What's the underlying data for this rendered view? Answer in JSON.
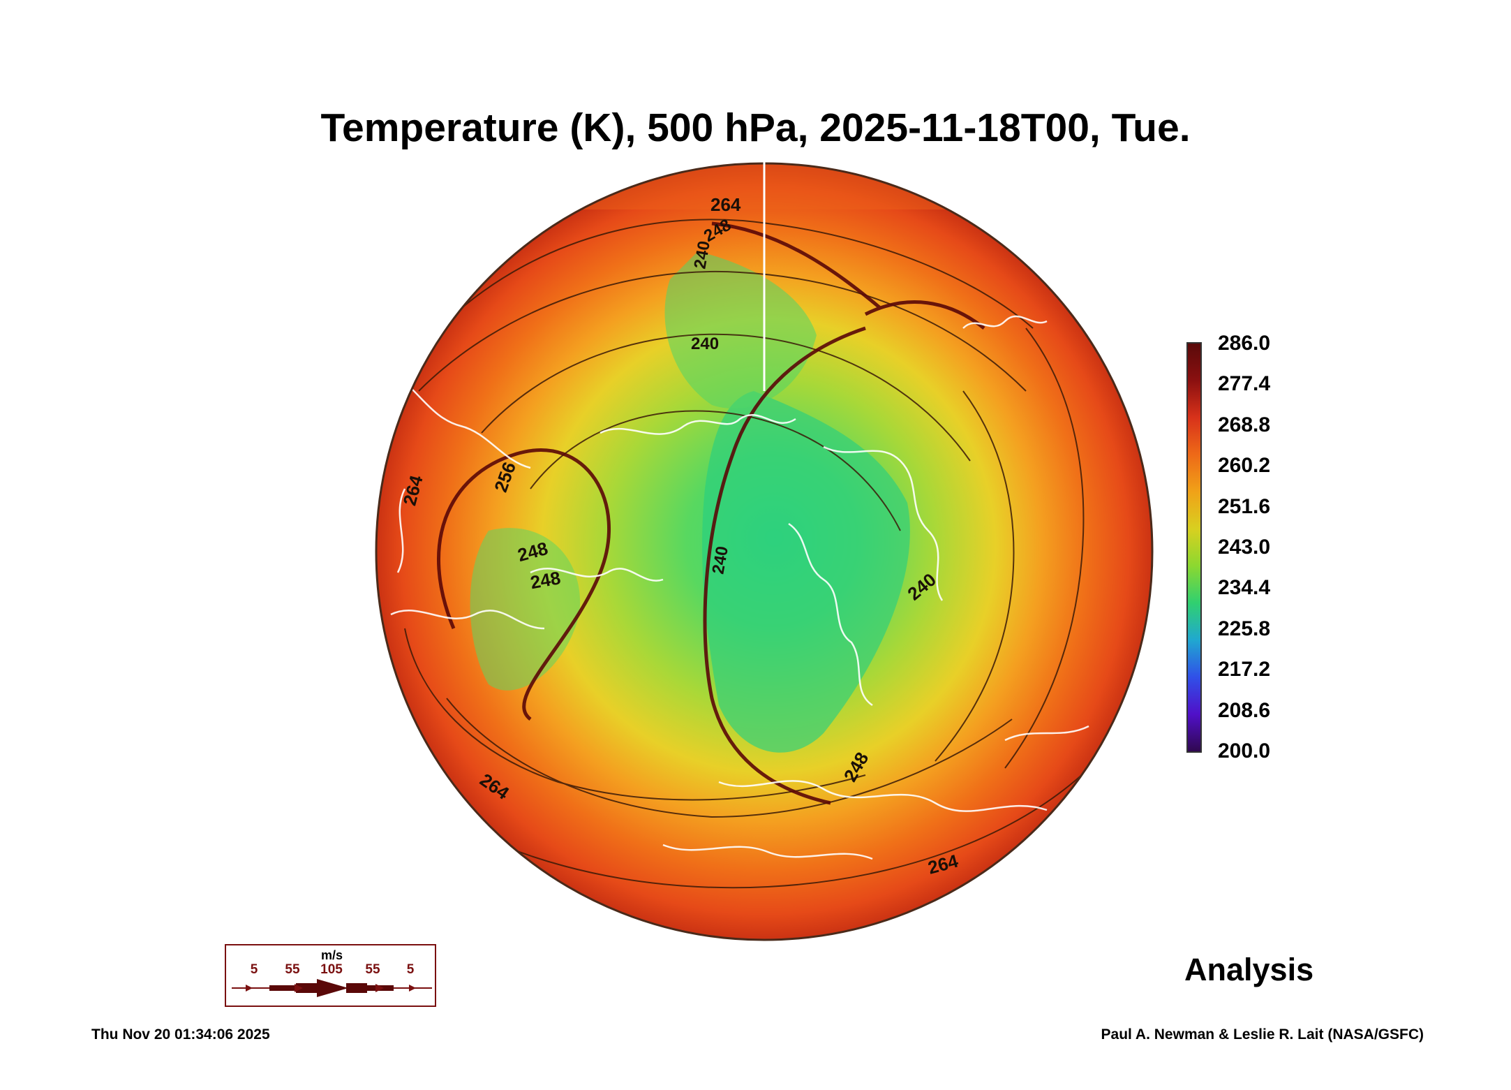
{
  "title": "Temperature (K), 500 hPa, 2025-11-18T00, Tue.",
  "colorbar": {
    "labels": [
      "286.0",
      "277.4",
      "268.8",
      "260.2",
      "251.6",
      "243.0",
      "234.4",
      "225.8",
      "217.2",
      "208.6",
      "200.0"
    ],
    "colors": [
      "#5a0a0a",
      "#8b1010",
      "#d8321a",
      "#ee6a18",
      "#f0a218",
      "#d8d020",
      "#8cd830",
      "#30d070",
      "#20a8d0",
      "#3050e8",
      "#5010c8",
      "#300850"
    ]
  },
  "contour_labels": [
    "264",
    "256",
    "248",
    "248",
    "248",
    "240",
    "240",
    "240",
    "240",
    "248",
    "264",
    "264",
    "264"
  ],
  "wind_legend": {
    "unit": "m/s",
    "values": [
      "5",
      "55",
      "105",
      "55",
      "5"
    ]
  },
  "label": "Analysis",
  "footer": {
    "timestamp": "Thu Nov 20 01:34:06 2025",
    "credit": "Paul A. Newman & Leslie R. Lait (NASA/GSFC)"
  }
}
